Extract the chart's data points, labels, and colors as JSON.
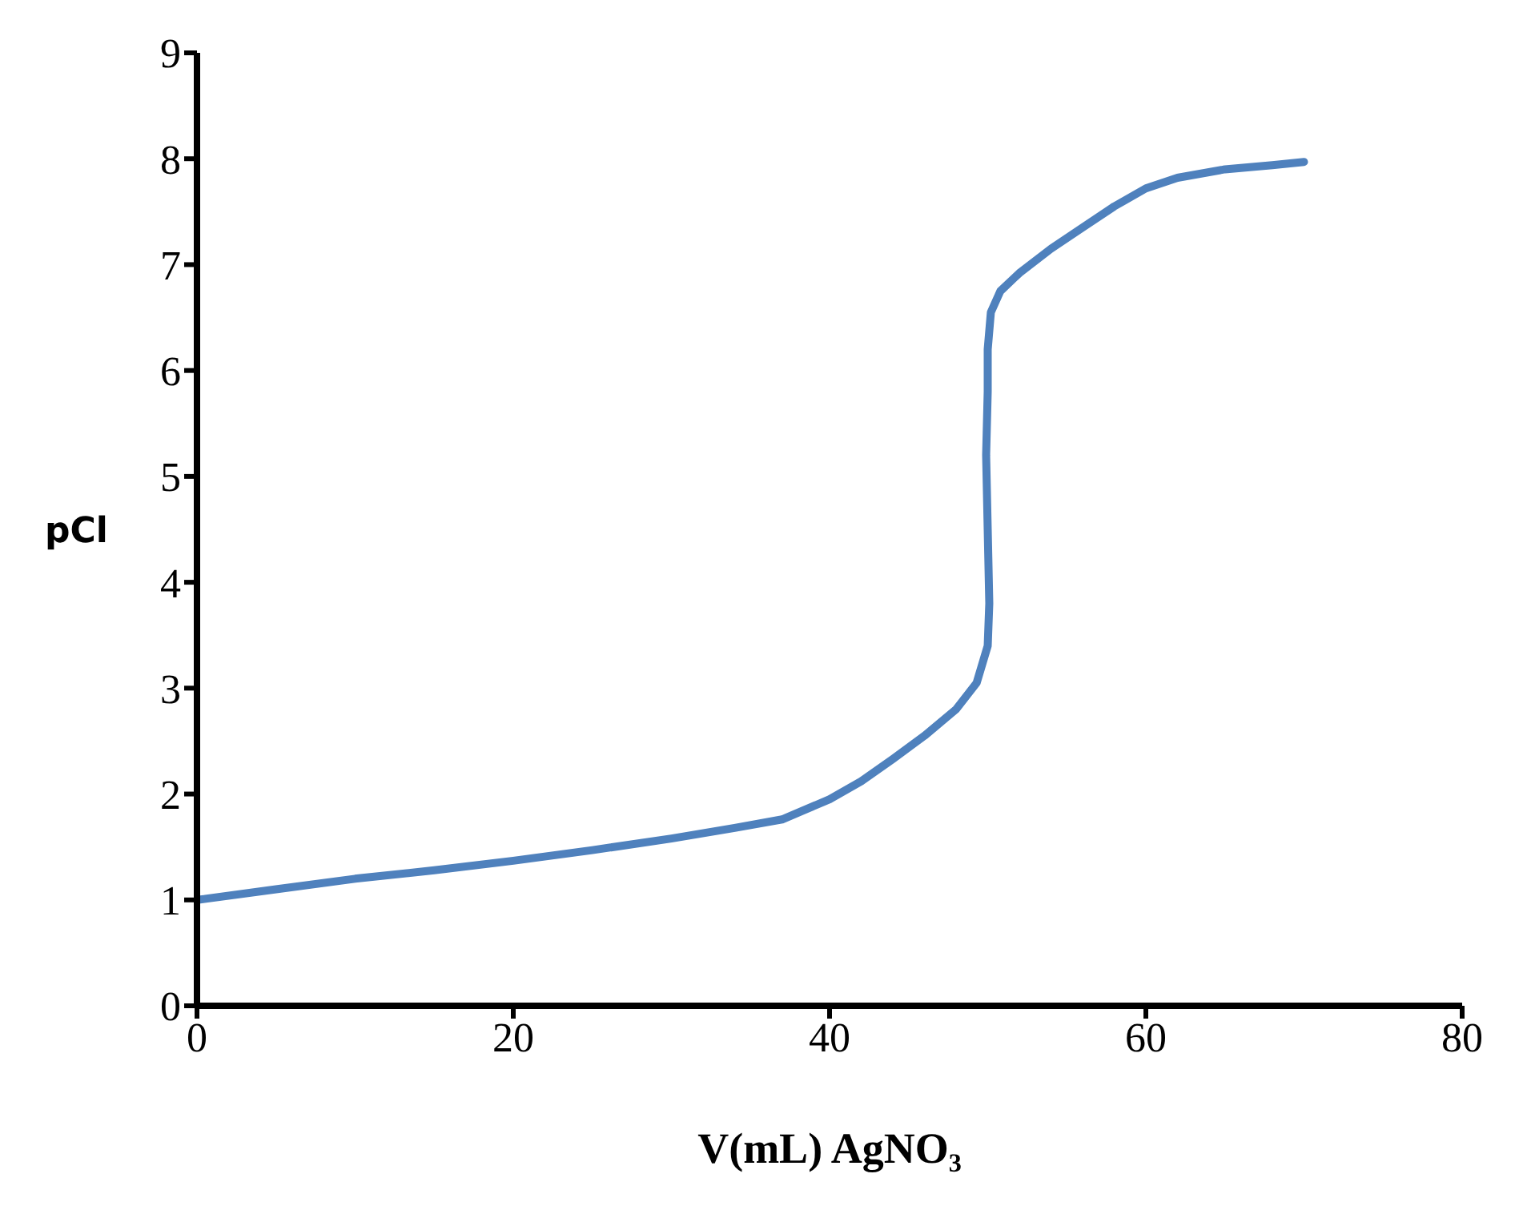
{
  "chart_data": {
    "type": "line",
    "xlabel": "V(mL) AgNO₃",
    "ylabel": "pCl",
    "x": [
      0,
      5,
      10,
      15,
      20,
      25,
      30,
      34,
      37,
      40,
      42,
      44,
      46,
      48,
      49.3,
      50,
      50.1,
      50,
      49.9,
      50,
      50,
      50.2,
      50.8,
      52,
      54,
      56,
      58,
      60,
      62,
      65,
      68,
      70
    ],
    "series": [
      {
        "color": "#4f81bd",
        "values": [
          1,
          1.1,
          1.2,
          1.28,
          1.37,
          1.47,
          1.58,
          1.68,
          1.76,
          1.95,
          2.12,
          2.33,
          2.55,
          2.8,
          3.05,
          3.4,
          3.8,
          4.5,
          5.2,
          5.8,
          6.2,
          6.55,
          6.75,
          6.92,
          7.15,
          7.35,
          7.55,
          7.72,
          7.82,
          7.9,
          7.94,
          7.97
        ]
      }
    ],
    "xlim": [
      0,
      80
    ],
    "xticks": [
      0,
      20,
      40,
      60,
      80
    ],
    "ylim": [
      0,
      9
    ],
    "yticks": [
      0,
      1,
      2,
      3,
      4,
      5,
      6,
      7,
      8,
      9
    ],
    "marker": "none",
    "line_style": "solid"
  }
}
